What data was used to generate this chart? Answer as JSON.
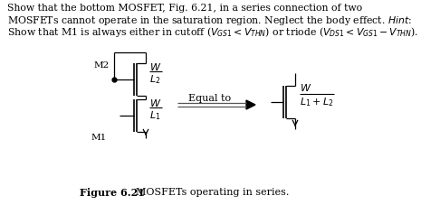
{
  "background_color": "#ffffff",
  "text_color": "#000000",
  "line1": "Show that the bottom MOSFET, Fig. 6.21, in a series connection of two",
  "line2": "MOSFETs cannot operate in the saturation region. Neglect the body effect. \\textit{Hint}:",
  "line3": "Show that M1 is always either in cutoff ($V_{GS1} < V_{THN}$) or triode ($V_{DS1} < V_{GS1} - V_{THN}$).",
  "equal_to": "Equal to",
  "caption_bold": "Figure 6.21",
  "caption_rest": "  MOSFETs operating in series.",
  "m2_label": "M2",
  "m1_label": "M1",
  "wl2_W": "$W$",
  "wl2_L": "$L_2$",
  "wl1_W": "$W$",
  "wl1_L": "$L_1$",
  "wleq_W": "$W$",
  "wleq_L": "$L_1+L_2$",
  "lw_main": 1.2,
  "lw_thin": 0.9
}
